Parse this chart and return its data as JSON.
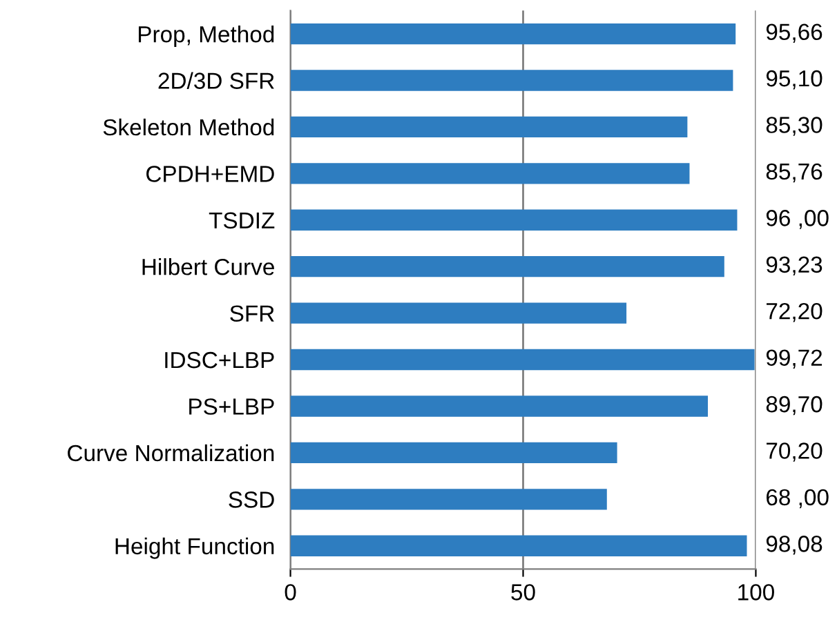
{
  "chart_data": {
    "type": "bar",
    "orientation": "horizontal",
    "categories": [
      "Prop, Method",
      "2D/3D SFR",
      "Skeleton Method",
      "CPDH+EMD",
      "TSDIZ",
      "Hilbert Curve",
      "SFR",
      "IDSC+LBP",
      "PS+LBP",
      "Curve Normalization",
      "SSD",
      "Height Function"
    ],
    "values": [
      95.66,
      95.1,
      85.3,
      85.76,
      96.0,
      93.23,
      72.2,
      99.72,
      89.7,
      70.2,
      68.0,
      98.08
    ],
    "value_labels": [
      "95,66",
      "95,10",
      "85,30",
      "85,76",
      "96 ,00",
      "93,23",
      "72,20",
      "99,72",
      "89,70",
      "70,20",
      "68 ,00",
      "98,08"
    ],
    "color": "#2e7dc0",
    "xlim": [
      0,
      100
    ],
    "xticks": [
      0,
      50,
      100
    ],
    "grid": "x",
    "legend": false
  }
}
